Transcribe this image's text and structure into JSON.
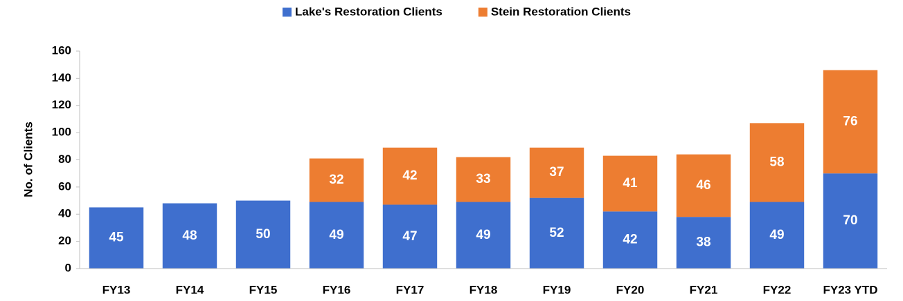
{
  "chart_data": {
    "type": "stacked_bar",
    "y_label": "No. of Clients",
    "categories": [
      "FY13",
      "FY14",
      "FY15",
      "FY16",
      "FY17",
      "FY18",
      "FY19",
      "FY20",
      "FY21",
      "FY22",
      "FY23 YTD"
    ],
    "series": [
      {
        "name": "Lake's Restoration Clients",
        "color": "#3f6fce",
        "values": [
          45,
          48,
          50,
          49,
          47,
          49,
          52,
          42,
          38,
          49,
          70
        ]
      },
      {
        "name": "Stein Restoration Clients",
        "color": "#ed7d31",
        "values": [
          null,
          null,
          null,
          32,
          42,
          33,
          37,
          41,
          46,
          58,
          76
        ]
      }
    ],
    "ylim": [
      0,
      160
    ],
    "yticks": [
      0,
      20,
      40,
      60,
      80,
      100,
      120,
      140,
      160
    ],
    "legend": "top",
    "grid": false
  }
}
